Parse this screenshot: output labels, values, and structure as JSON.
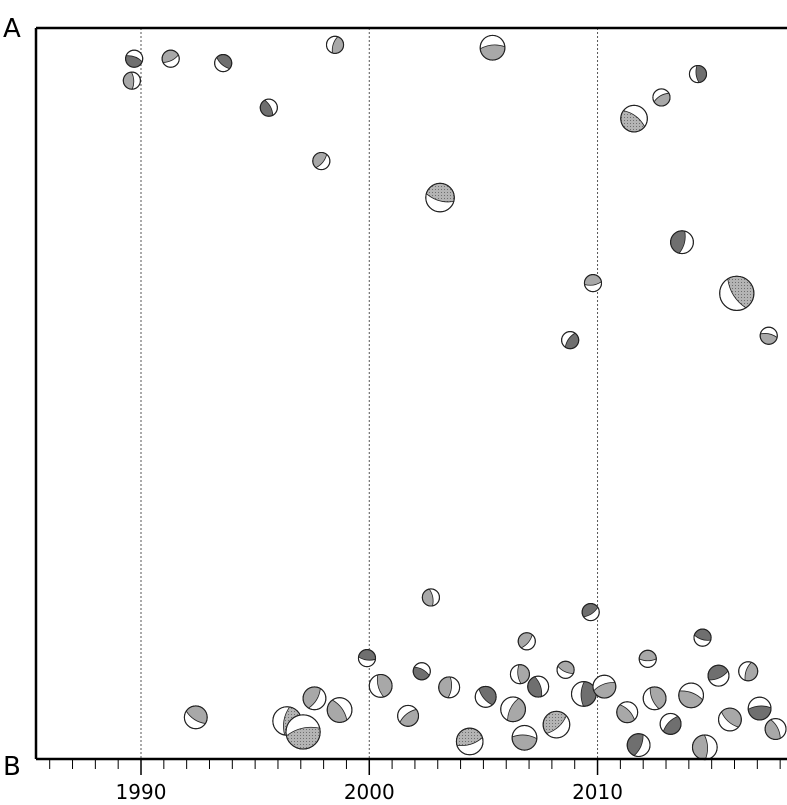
{
  "page": {
    "title": "",
    "label_top": "A",
    "label_bottom": "B"
  },
  "chart_data": {
    "type": "scatter",
    "title": "",
    "xlabel": "",
    "ylabel": "",
    "xlim": [
      1985.4,
      2018.3
    ],
    "ylim": [
      0,
      1
    ],
    "x_ticks": [
      1990,
      2000,
      2010
    ],
    "x_tick_labels": [
      "1990",
      "2000",
      "2010"
    ],
    "vertical_gridlines": [
      1990,
      2000,
      2010
    ],
    "mark_style": "focal-mechanism beachballs",
    "colors": {
      "fill": "#a8a8a8",
      "dark": "#6f6f6f",
      "outline": "#222222",
      "axis": "#000000"
    },
    "series": [
      {
        "values": [
          [
            1989.7,
            0.958,
            0.9
          ],
          [
            1989.6,
            0.928,
            0.9
          ],
          [
            1991.3,
            0.958,
            0.9
          ],
          [
            1993.6,
            0.952,
            0.9
          ],
          [
            1998.5,
            0.977,
            0.9
          ],
          [
            2005.4,
            0.973,
            1.3
          ],
          [
            1995.6,
            0.891,
            0.9
          ],
          [
            1997.9,
            0.818,
            0.9
          ],
          [
            2003.1,
            0.768,
            1.5
          ],
          [
            2014.4,
            0.937,
            0.9
          ],
          [
            2012.8,
            0.905,
            0.9
          ],
          [
            2011.6,
            0.876,
            1.4
          ],
          [
            2013.7,
            0.707,
            1.2
          ],
          [
            2009.8,
            0.651,
            0.9
          ],
          [
            2016.1,
            0.637,
            1.8
          ],
          [
            2008.8,
            0.573,
            0.9
          ],
          [
            2017.5,
            0.579,
            0.9
          ],
          [
            2002.7,
            0.221,
            0.9
          ],
          [
            2009.7,
            0.201,
            0.9
          ],
          [
            1992.4,
            0.057,
            1.2
          ],
          [
            1996.4,
            0.052,
            1.5
          ],
          [
            1997.1,
            0.037,
            1.8
          ],
          [
            1998.7,
            0.067,
            1.3
          ],
          [
            1997.6,
            0.083,
            1.2
          ],
          [
            1999.9,
            0.138,
            0.9
          ],
          [
            2000.5,
            0.1,
            1.2
          ],
          [
            2001.7,
            0.059,
            1.1
          ],
          [
            2002.3,
            0.12,
            0.9
          ],
          [
            2003.5,
            0.098,
            1.1
          ],
          [
            2004.4,
            0.024,
            1.4
          ],
          [
            2005.1,
            0.085,
            1.1
          ],
          [
            2006.3,
            0.068,
            1.3
          ],
          [
            2006.8,
            0.029,
            1.3
          ],
          [
            2007.4,
            0.099,
            1.1
          ],
          [
            2008.2,
            0.047,
            1.4
          ],
          [
            2008.6,
            0.122,
            0.9
          ],
          [
            2009.4,
            0.089,
            1.3
          ],
          [
            2010.3,
            0.099,
            1.2
          ],
          [
            2011.3,
            0.064,
            1.1
          ],
          [
            2011.8,
            0.019,
            1.2
          ],
          [
            2012.2,
            0.137,
            0.9
          ],
          [
            2012.5,
            0.083,
            1.2
          ],
          [
            2013.2,
            0.048,
            1.1
          ],
          [
            2014.1,
            0.087,
            1.3
          ],
          [
            2014.7,
            0.016,
            1.3
          ],
          [
            2015.3,
            0.114,
            1.1
          ],
          [
            2015.8,
            0.054,
            1.2
          ],
          [
            2016.6,
            0.12,
            1.0
          ],
          [
            2017.1,
            0.069,
            1.2
          ],
          [
            2017.8,
            0.041,
            1.1
          ],
          [
            2006.9,
            0.161,
            0.9
          ],
          [
            2014.6,
            0.166,
            0.9
          ],
          [
            2006.6,
            0.116,
            1.0
          ]
        ]
      }
    ]
  }
}
